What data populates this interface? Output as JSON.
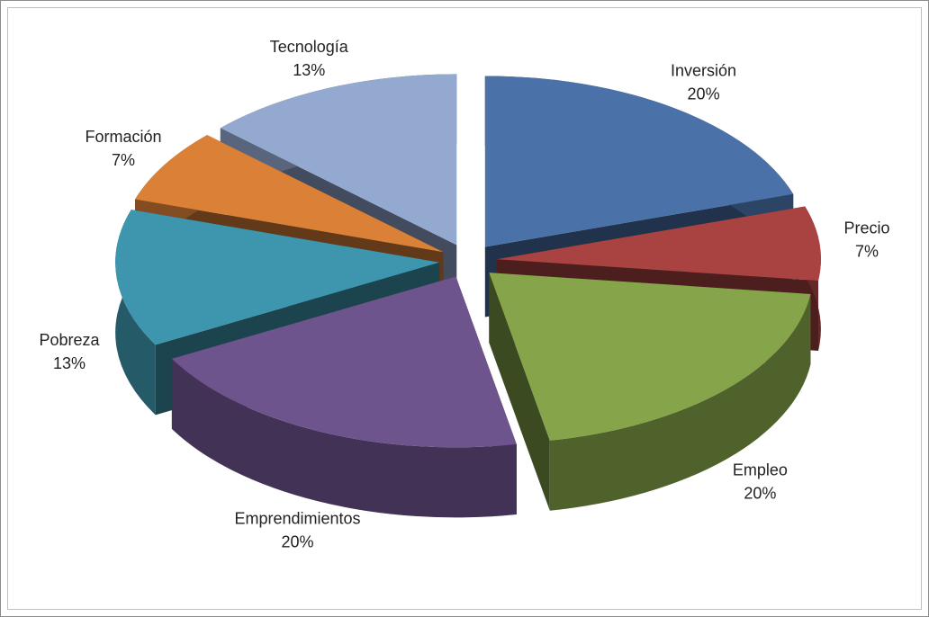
{
  "chart_data": {
    "type": "pie",
    "categories": [
      "Inversión",
      "Precio",
      "Empleo",
      "Emprendimientos",
      "Pobreza",
      "Formación",
      "Tecnología"
    ],
    "values": [
      20,
      7,
      20,
      20,
      13,
      7,
      13
    ],
    "value_labels": [
      "20%",
      "7%",
      "20%",
      "20%",
      "13%",
      "7%",
      "13%"
    ],
    "colors": [
      "#4a72a8",
      "#a84341",
      "#86a44a",
      "#6e548d",
      "#3d96ae",
      "#da8137",
      "#94a9d0"
    ]
  }
}
